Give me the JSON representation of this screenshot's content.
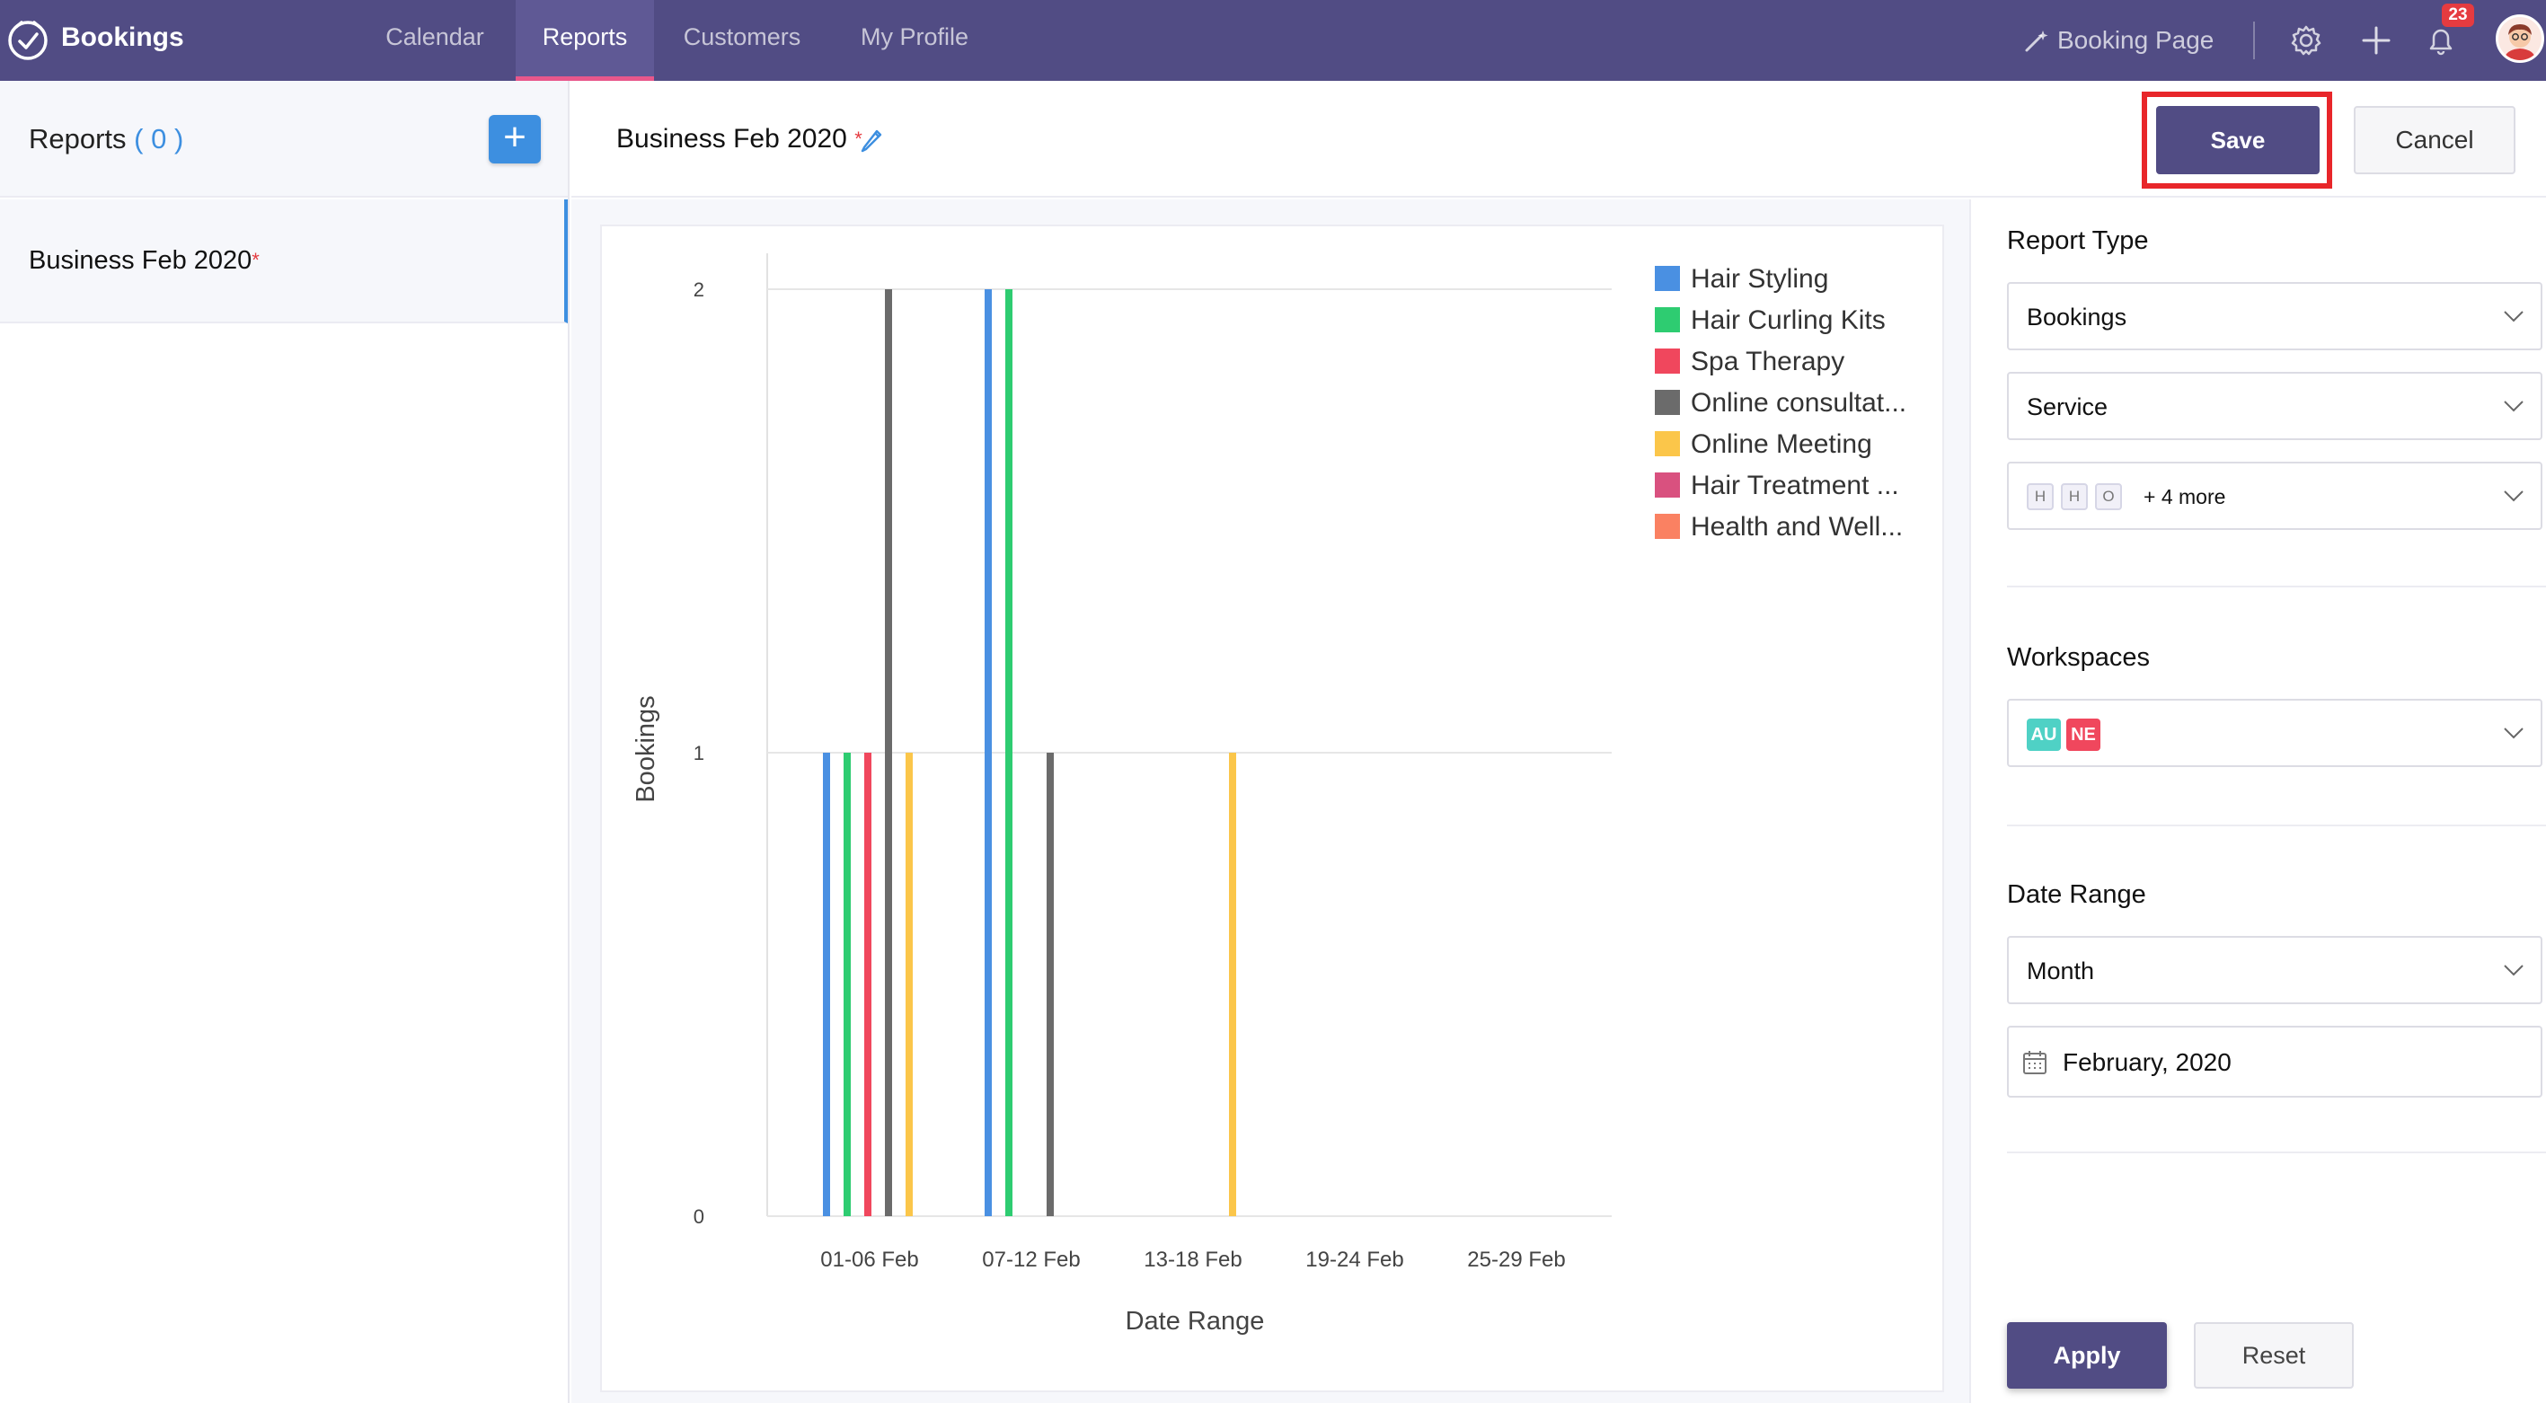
{
  "app": {
    "brand": "Bookings"
  },
  "nav": {
    "tabs": [
      {
        "label": "Calendar"
      },
      {
        "label": "Reports"
      },
      {
        "label": "Customers"
      },
      {
        "label": "My Profile"
      }
    ],
    "booking_page_label": "Booking Page",
    "notification_count": "23",
    "icons": [
      "bookings-logo-icon",
      "magic-wand-icon",
      "gear-icon",
      "plus-icon",
      "bell-icon",
      "avatar"
    ]
  },
  "sidebar": {
    "title": "Reports",
    "count_open": " ( ",
    "count": "0",
    "count_close": " )",
    "add_label": "+",
    "items": [
      {
        "label": "Business Feb 2020",
        "marker": "*"
      }
    ]
  },
  "header": {
    "report_title": "Business Feb 2020",
    "unsaved_marker": "*",
    "save_label": "Save",
    "cancel_label": "Cancel"
  },
  "chart_data": {
    "type": "bar",
    "xlabel": "Date Range",
    "ylabel": "Bookings",
    "ylim": [
      0,
      2
    ],
    "yticks": [
      "0",
      "1",
      "2"
    ],
    "categories": [
      "01-06 Feb",
      "07-12 Feb",
      "13-18 Feb",
      "19-24 Feb",
      "25-29 Feb"
    ],
    "legend_position": "top-right",
    "series": [
      {
        "name": "Hair Styling",
        "color": "#4a90e2",
        "values": [
          1,
          2,
          0,
          0,
          0
        ]
      },
      {
        "name": "Hair Curling Kits",
        "color": "#2ecc71",
        "values": [
          1,
          2,
          0,
          0,
          0
        ]
      },
      {
        "name": "Spa Therapy",
        "color": "#f0475d",
        "values": [
          1,
          0,
          0,
          0,
          0
        ]
      },
      {
        "name": "Online consultat...",
        "color": "#6b6b6b",
        "values": [
          2,
          1,
          0,
          0,
          0
        ]
      },
      {
        "name": "Online Meeting",
        "color": "#fbc64a",
        "values": [
          1,
          0,
          1,
          0,
          0
        ]
      },
      {
        "name": "Hair Treatment ...",
        "color": "#d9517f",
        "values": [
          0,
          0,
          0,
          0,
          0
        ]
      },
      {
        "name": "Health and Well...",
        "color": "#fa8162",
        "values": [
          0,
          0,
          0,
          0,
          0
        ]
      }
    ]
  },
  "filters": {
    "report_type_title": "Report Type",
    "report_type_value": "Bookings",
    "group_by_value": "Service",
    "service_chips": [
      "H",
      "H",
      "O"
    ],
    "service_more": "+ 4 more",
    "workspaces_title": "Workspaces",
    "workspace_chips": [
      {
        "label": "AU",
        "color": "#4fd1c5"
      },
      {
        "label": "NE",
        "color": "#f0475d"
      }
    ],
    "date_range_title": "Date Range",
    "period_value": "Month",
    "date_value": "February, 2020",
    "apply_label": "Apply",
    "reset_label": "Reset"
  }
}
